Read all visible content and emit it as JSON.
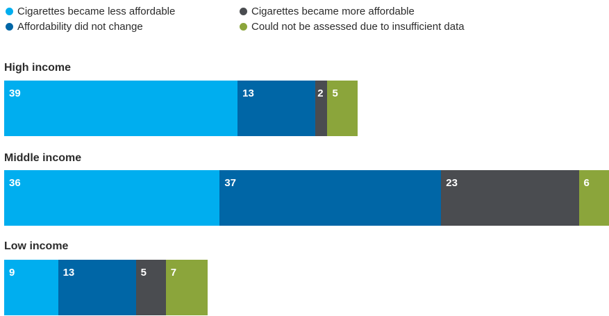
{
  "chart_data": {
    "type": "bar",
    "orientation": "horizontal",
    "stacked": true,
    "title": "",
    "xlabel": "",
    "ylabel": "",
    "grid": false,
    "legend_position": "top",
    "categories": [
      "High income",
      "Middle income",
      "Low income"
    ],
    "series": [
      {
        "name": "Cigarettes became less affordable",
        "color": "#00aeef",
        "values": [
          39,
          36,
          9
        ]
      },
      {
        "name": "Affordability did not change",
        "color": "#0066a6",
        "values": [
          13,
          37,
          13
        ]
      },
      {
        "name": "Cigarettes became more affordable",
        "color": "#4a4c50",
        "values": [
          2,
          23,
          5
        ]
      },
      {
        "name": "Could not be assessed due to insufficient data",
        "color": "#8ba53b",
        "values": [
          5,
          6,
          7
        ]
      }
    ]
  }
}
